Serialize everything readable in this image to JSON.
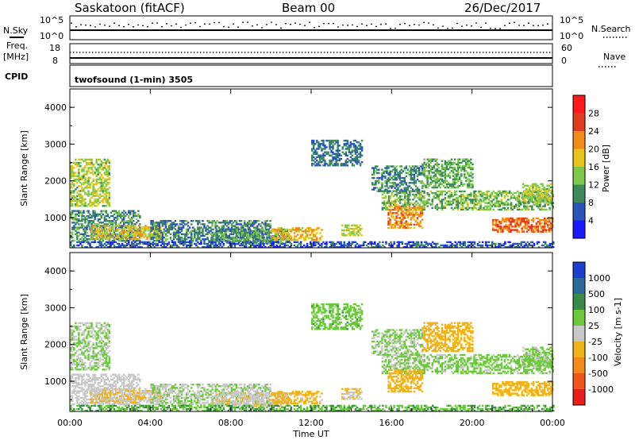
{
  "header": {
    "site": "Saskatoon (fitACF)",
    "beam": "Beam 00",
    "date": "26/Dec/2017"
  },
  "strip_labels": {
    "nsky": "N.Sky",
    "nsearch": "N.Search",
    "freq": "Freq.",
    "freq_unit": "[MHz]",
    "nave": "Nave",
    "cpid": "CPID",
    "nsky_ticks": [
      "10^5",
      "10^0"
    ],
    "freq_ticks": [
      "18",
      "8"
    ],
    "nave_ticks": [
      "60",
      "0"
    ],
    "cpid_value": "twofsound (1-min) 3505"
  },
  "axes": {
    "ylabel": "Slant Range [km]",
    "xlabel": "Time UT",
    "x_ticks": [
      "00:00",
      "04:00",
      "08:00",
      "12:00",
      "16:00",
      "20:00",
      "00:00"
    ],
    "y_ticks": [
      "1000",
      "2000",
      "3000",
      "4000"
    ]
  },
  "colorbars": {
    "power": {
      "label": "Power [dB]",
      "ticks": [
        "4",
        "8",
        "12",
        "16",
        "20",
        "24",
        "28"
      ],
      "colors": [
        "#1a1aff",
        "#2b54b8",
        "#3f8a5a",
        "#7ec84a",
        "#e8c21c",
        "#f08a1a",
        "#e03b1e",
        "#ff1a1a"
      ]
    },
    "velocity": {
      "label": "Velocity [m s-1]",
      "ticks": [
        "1000",
        "500",
        "100",
        "25",
        "-25",
        "-100",
        "-500",
        "-1000"
      ],
      "colors": [
        "#1a3fcc",
        "#2a6a9a",
        "#3a8a4a",
        "#6ac83a",
        "#c8c8c8",
        "#f0b21a",
        "#f08a1a",
        "#f0561a",
        "#e81e1e"
      ]
    }
  },
  "chart_data": [
    {
      "type": "heatmap",
      "title": "",
      "colorbar_label": "Power [dB]",
      "xlabel": "Time UT",
      "ylabel": "Slant Range [km]",
      "x_range": [
        "00:00",
        "24:00"
      ],
      "ylim": [
        180,
        4500
      ],
      "clim": [
        0,
        32
      ],
      "regions": [
        {
          "t": [
            0.0,
            2.0
          ],
          "r": [
            1300,
            2600
          ],
          "v": 15,
          "vel": -25
        },
        {
          "t": [
            0.0,
            3.5
          ],
          "r": [
            350,
            1200
          ],
          "v": 10,
          "vel": -60
        },
        {
          "t": [
            1.0,
            4.5
          ],
          "r": [
            400,
            800
          ],
          "v": 18,
          "vel": -100
        },
        {
          "t": [
            4.0,
            10.0
          ],
          "r": [
            350,
            900
          ],
          "v": 9,
          "vel": -30
        },
        {
          "t": [
            7.0,
            11.0
          ],
          "r": [
            300,
            700
          ],
          "v": 11,
          "vel": -80
        },
        {
          "t": [
            10.0,
            12.5
          ],
          "r": [
            380,
            700
          ],
          "v": 19,
          "vel": -120
        },
        {
          "t": [
            12.0,
            14.5
          ],
          "r": [
            2400,
            3100
          ],
          "v": 8,
          "vel": 0
        },
        {
          "t": [
            13.5,
            14.5
          ],
          "r": [
            500,
            800
          ],
          "v": 16,
          "vel": -90
        },
        {
          "t": [
            15.5,
            24.0
          ],
          "r": [
            1200,
            1700
          ],
          "v": 13,
          "vel": -10
        },
        {
          "t": [
            15.0,
            17.5
          ],
          "r": [
            1700,
            2400
          ],
          "v": 9,
          "vel": -20
        },
        {
          "t": [
            15.8,
            17.5
          ],
          "r": [
            700,
            1300
          ],
          "v": 22,
          "vel": -200
        },
        {
          "t": [
            17.5,
            20.0
          ],
          "r": [
            1800,
            2600
          ],
          "v": 12,
          "vel": -400
        },
        {
          "t": [
            21.0,
            24.0
          ],
          "r": [
            600,
            1000
          ],
          "v": 24,
          "vel": -300
        },
        {
          "t": [
            22.5,
            24.0
          ],
          "r": [
            1400,
            1900
          ],
          "v": 15,
          "vel": -10
        },
        {
          "t": [
            0.0,
            24.0
          ],
          "r": [
            180,
            350
          ],
          "v": 6,
          "vel": 20
        }
      ]
    }
  ]
}
